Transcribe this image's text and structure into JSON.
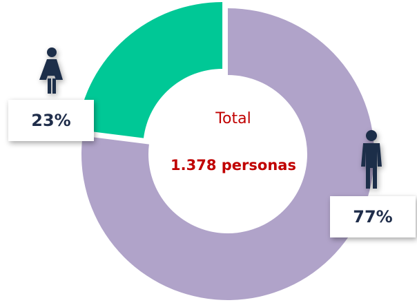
{
  "chart_data": {
    "type": "pie",
    "donut": true,
    "values": [
      23,
      77
    ],
    "value_labels": [
      "23%",
      "77%"
    ],
    "colors": [
      "#00c896",
      "#b0a3c9"
    ],
    "explode": [
      true,
      false
    ],
    "center_title": "Total",
    "center_text": "1.378 personas"
  }
}
